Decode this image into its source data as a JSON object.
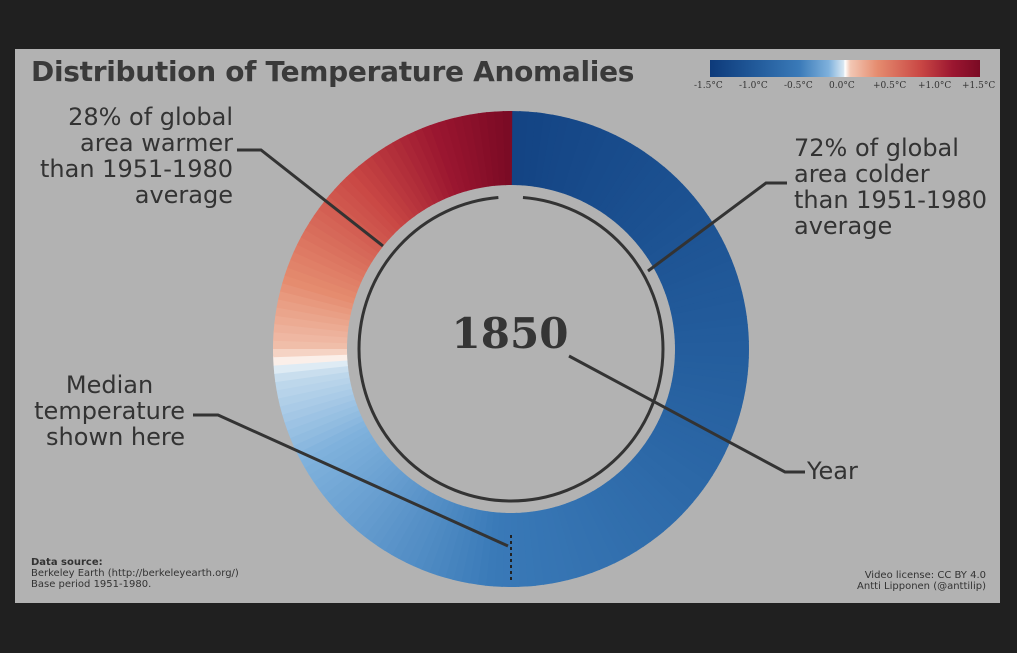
{
  "title": "Distribution of Temperature Anomalies",
  "year": "1850",
  "legend": {
    "ticks": [
      "-1.5°C",
      "-1.0°C",
      "-0.5°C",
      "0.0°C",
      "+0.5°C",
      "+1.0°C",
      "+1.5°C"
    ],
    "range": [
      -1.5,
      1.5
    ]
  },
  "annotations": {
    "warmer": [
      "28% of global",
      "area warmer",
      "than 1951-1980",
      "average"
    ],
    "colder": [
      "72% of global",
      "area colder",
      "than 1951-1980",
      "average"
    ],
    "median": [
      "Median",
      "temperature",
      "shown here"
    ],
    "year": "Year"
  },
  "source": {
    "heading": "Data source:",
    "line1": "Berkeley Earth (http://berkeleyearth.org/)",
    "line2": "Base period 1951-1980."
  },
  "license": {
    "line1": "Video license: CC BY 4.0",
    "line2": "Antti Lipponen (@anttilip)"
  },
  "colors": {
    "panel": "#b2b2b2",
    "background": "#202020",
    "text": "#333333",
    "cold": "#0d3a7a",
    "warm": "#7a0a24"
  },
  "ring": {
    "share_warmer": 0.28,
    "share_colder": 0.72,
    "scale_start_anomaly": -1.5,
    "scale_end_anomaly": 1.5
  }
}
